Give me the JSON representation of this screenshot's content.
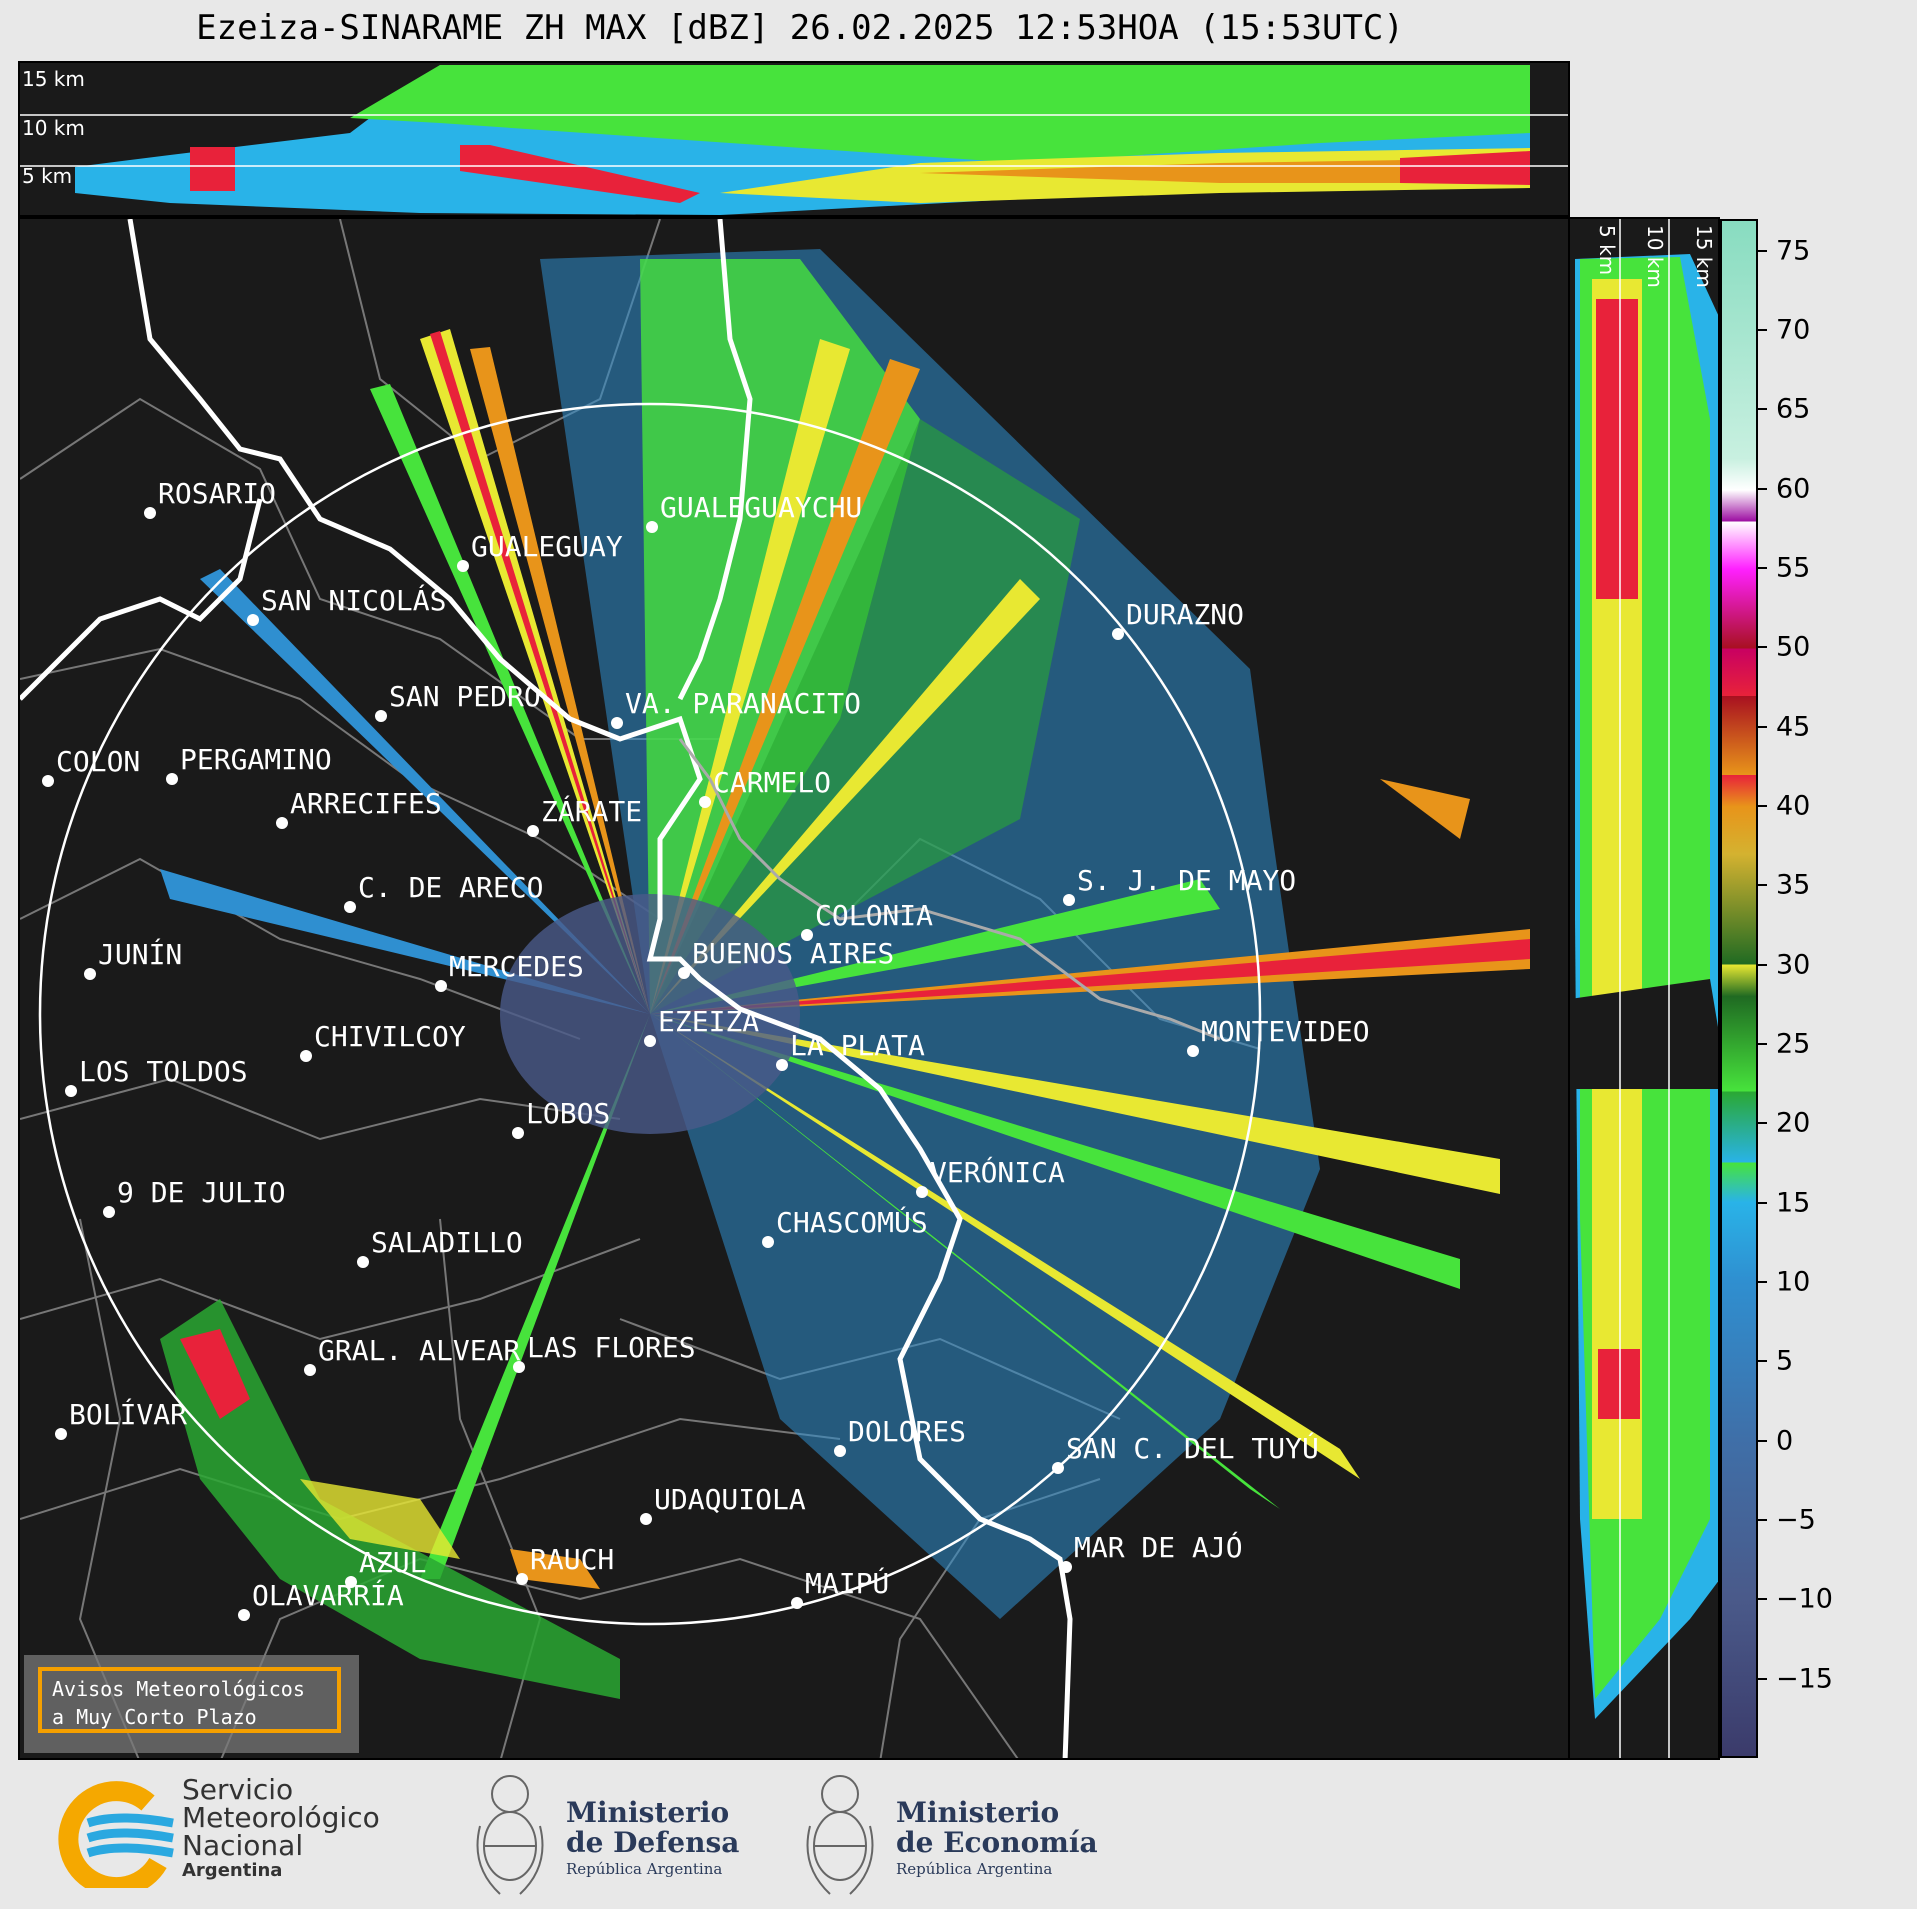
{
  "title": "Ezeiza-SINARAME ZH MAX [dBZ] 26.02.2025 12:53HOA (15:53UTC)",
  "top_panel": {
    "alt_labels": [
      "15 km",
      "10 km",
      "5 km"
    ]
  },
  "right_panel": {
    "alt_labels": [
      "5 km",
      "10 km",
      "15 km"
    ]
  },
  "colorbar": {
    "ticks": [
      "75",
      "70",
      "65",
      "60",
      "55",
      "50",
      "45",
      "40",
      "35",
      "30",
      "25",
      "20",
      "15",
      "10",
      "5",
      "0",
      "−5",
      "−10",
      "−15"
    ],
    "tick_values": [
      75,
      70,
      65,
      60,
      55,
      50,
      45,
      40,
      35,
      30,
      25,
      20,
      15,
      10,
      5,
      0,
      -5,
      -10,
      -15
    ],
    "range": [
      -20,
      77
    ],
    "colors": {
      "c1": "#3b3b6b",
      "c2": "#4a5a8a",
      "c3": "#3f6fa8",
      "c4": "#2f8fd0",
      "c5": "#29b3e8",
      "c6": "#47e33c",
      "c7": "#2aa832",
      "c8": "#1f6a22",
      "c9": "#e8e832",
      "c10": "#d4b230",
      "c11": "#e8941a",
      "c12": "#e8223a",
      "c13": "#a81020",
      "c14": "#c80062",
      "c15": "#ff20ff",
      "c16": "#9b0aa0",
      "c17": "#ffffff",
      "c18": "#c8f0e0",
      "c19": "#88dcc0"
    }
  },
  "cities": [
    {
      "name": "ROSARIO"
    },
    {
      "name": "GUALEGUAYCHU"
    },
    {
      "name": "GUALEGUAY"
    },
    {
      "name": "SAN NICOLÁS"
    },
    {
      "name": "DURAZNO"
    },
    {
      "name": "SAN PEDRO"
    },
    {
      "name": "VA. PARANACITO"
    },
    {
      "name": "COLON"
    },
    {
      "name": "PERGAMINO"
    },
    {
      "name": "CARMELO"
    },
    {
      "name": "ARRECIFES"
    },
    {
      "name": "ZÁRATE"
    },
    {
      "name": "C. DE ARECO"
    },
    {
      "name": "S. J. DE MAYO"
    },
    {
      "name": "COLONIA"
    },
    {
      "name": "JUNÍN"
    },
    {
      "name": "BUENOS AIRES"
    },
    {
      "name": "MERCEDES"
    },
    {
      "name": "MONTEVIDEO"
    },
    {
      "name": "EZEIZA"
    },
    {
      "name": "CHIVILCOY"
    },
    {
      "name": "LA PLATA"
    },
    {
      "name": "LOS TOLDOS"
    },
    {
      "name": "LOBOS"
    },
    {
      "name": "VERÓNICA"
    },
    {
      "name": "9 DE JULIO"
    },
    {
      "name": "CHASCOMÚS"
    },
    {
      "name": "SALADILLO"
    },
    {
      "name": "GRAL. ALVEAR"
    },
    {
      "name": "LAS FLORES"
    },
    {
      "name": "BOLÍVAR"
    },
    {
      "name": "DOLORES"
    },
    {
      "name": "SAN C. DEL TUYÚ"
    },
    {
      "name": "UDAQUIOLA"
    },
    {
      "name": "MAR DE AJÓ"
    },
    {
      "name": "AZUL"
    },
    {
      "name": "RAUCH"
    },
    {
      "name": "OLAVARRÍA"
    },
    {
      "name": "MAIPÚ"
    }
  ],
  "avisos": {
    "line1": "Avisos Meteorológicos",
    "line2": "a Muy Corto Plazo"
  },
  "footer": {
    "smn_line1": "Servicio",
    "smn_line2": "Meteorológico",
    "smn_line3": "Nacional",
    "smn_line4": "Argentina",
    "defensa_line1": "Ministerio",
    "defensa_line2": "de Defensa",
    "defensa_line3": "República Argentina",
    "economia_line1": "Ministerio",
    "economia_line2": "de Economía",
    "economia_line3": "República Argentina"
  }
}
